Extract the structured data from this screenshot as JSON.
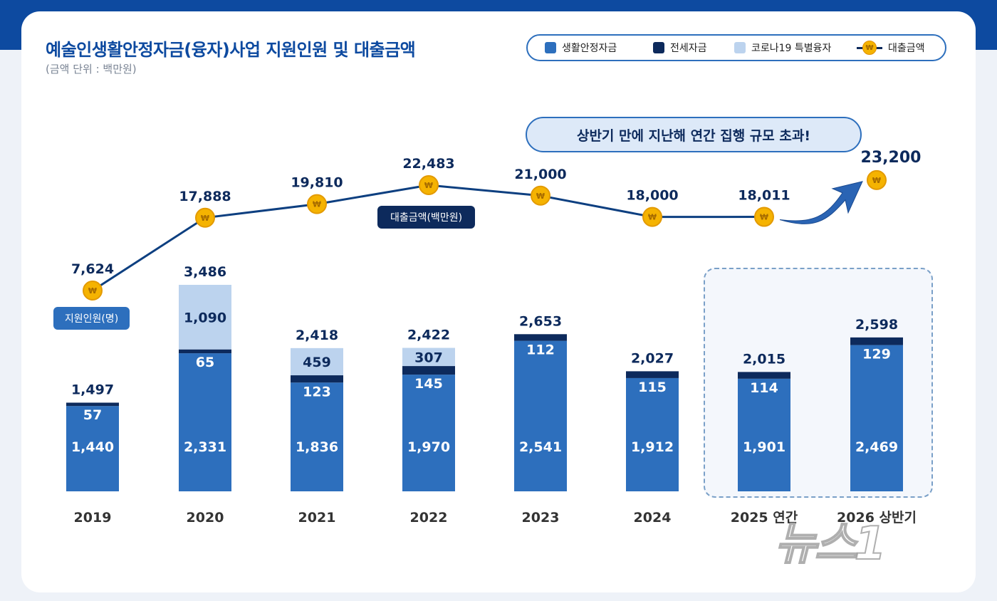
{
  "title": "예술인생활안정자금(융자)사업 지원인원 및 대출금액",
  "subtitle": "(금액 단위 : 백만원)",
  "legend": {
    "living": "생활안정자금",
    "jeonse": "전세자금",
    "corona": "코로나19 특별융자",
    "loan": "대출금액"
  },
  "callout": "상반기 만에 지난해 연간 집행 규모 초과!",
  "tags": {
    "loan": "대출금액(백만원)",
    "people": "지원인원(명)"
  },
  "coin_symbol": "₩",
  "watermark": "뉴스1",
  "colors": {
    "living": "#2d6fbd",
    "jeonse": "#0d2a5c",
    "corona": "#bcd3ee",
    "coin": "#f5b301",
    "line": "#0d3f80"
  },
  "chart_data": {
    "type": "bar",
    "categories": [
      "2019",
      "2020",
      "2021",
      "2022",
      "2023",
      "2024",
      "2025 연간",
      "2026 상반기"
    ],
    "series": [
      {
        "name": "생활안정자금",
        "values": [
          1440,
          2331,
          1836,
          1970,
          2541,
          1912,
          1901,
          2469
        ],
        "labels": [
          "1,440",
          "2,331",
          "1,836",
          "1,970",
          "2,541",
          "1,912",
          "1,901",
          "2,469"
        ]
      },
      {
        "name": "전세자금",
        "values": [
          57,
          65,
          123,
          145,
          112,
          115,
          114,
          129
        ],
        "labels": [
          "57",
          "65",
          "123",
          "145",
          "112",
          "115",
          "114",
          "129"
        ]
      },
      {
        "name": "코로나19 특별융자",
        "values": [
          0,
          1090,
          459,
          307,
          0,
          0,
          0,
          0
        ],
        "labels": [
          "",
          "1,090",
          "459",
          "307",
          "",
          "",
          "",
          ""
        ]
      }
    ],
    "totals": [
      1497,
      3486,
      2418,
      2422,
      2653,
      2027,
      2015,
      2598
    ],
    "total_labels": [
      "1,497",
      "3,486",
      "2,418",
      "2,422",
      "2,653",
      "2,027",
      "2,015",
      "2,598"
    ],
    "line": {
      "name": "대출금액",
      "values": [
        7624,
        17888,
        19810,
        22483,
        21000,
        18000,
        18011,
        23200
      ],
      "labels": [
        "7,624",
        "17,888",
        "19,810",
        "22,483",
        "21,000",
        "18,000",
        "18,011",
        "23,200"
      ]
    }
  }
}
